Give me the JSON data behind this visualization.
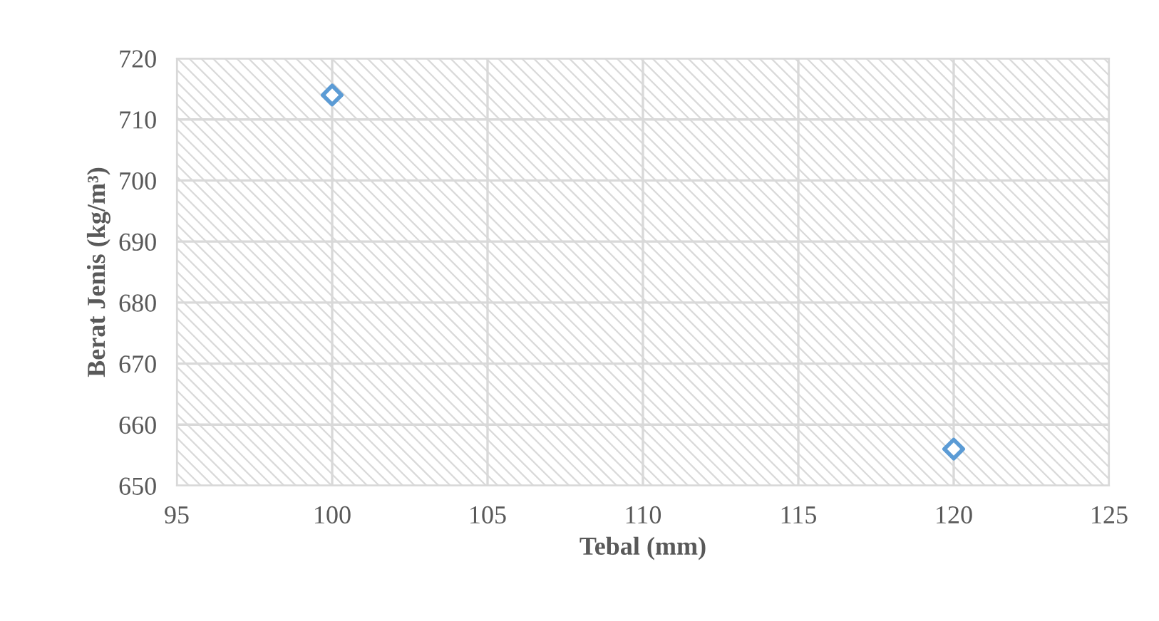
{
  "chart_data": {
    "type": "scatter",
    "xlabel": "Tebal (mm)",
    "ylabel": "Berat Jenis (kg/m³)",
    "x": [
      100,
      120
    ],
    "series": [
      {
        "color": "#5b9bd5",
        "values": [
          714,
          656
        ]
      }
    ],
    "xlim": [
      95,
      125
    ],
    "xticks": [
      95,
      100,
      105,
      110,
      115,
      120,
      125
    ],
    "ylim": [
      650,
      720
    ],
    "yticks": [
      650,
      660,
      670,
      680,
      690,
      700,
      710,
      720
    ],
    "grid": true,
    "marker": "diamond",
    "legend": false
  }
}
